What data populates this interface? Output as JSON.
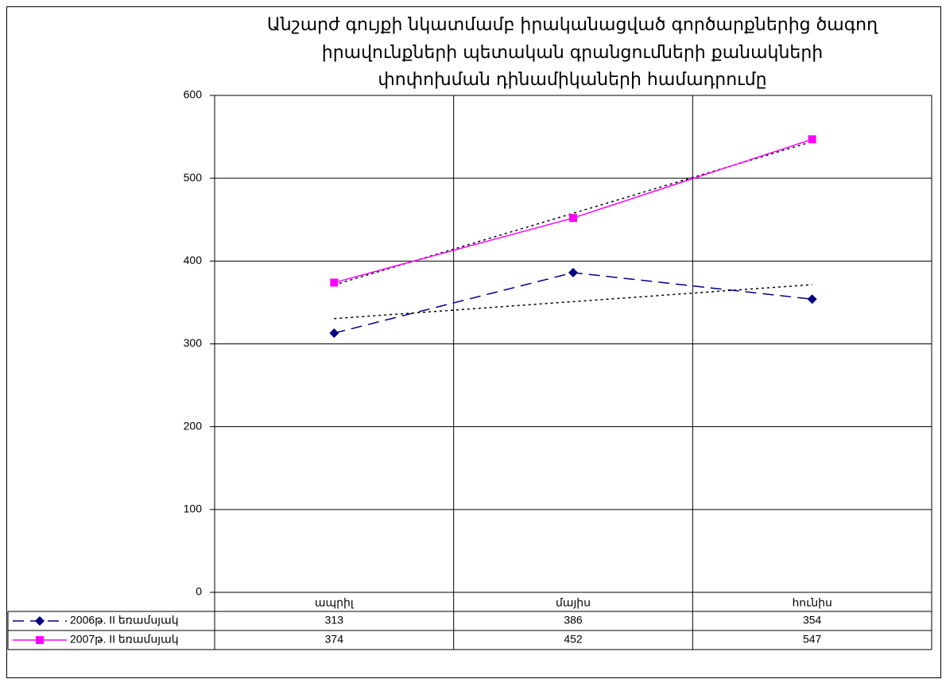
{
  "chart_data": {
    "type": "line",
    "title": [
      "Անշարժ գույքի նկատմամբ իրականացված գործարքներից ծագող",
      "իրավունքների պետական գրանցումների քանակների",
      "փոփոխման դինամիկաների համադրումը"
    ],
    "categories": [
      "ապրիլ",
      "մայիս",
      "հունիս"
    ],
    "series": [
      {
        "name": "2006թ. II եռամսյակ",
        "color": "#000080",
        "marker": "diamond",
        "dash": "dashed",
        "values": [
          313,
          386,
          354
        ]
      },
      {
        "name": "2007թ. II եռամսյակ",
        "color": "#ff00ff",
        "marker": "square",
        "dash": "solid",
        "values": [
          374,
          452,
          547
        ]
      }
    ],
    "ylim": [
      0,
      600
    ],
    "yticks": [
      0,
      100,
      200,
      300,
      400,
      500,
      600
    ],
    "grid": true,
    "trendline": "linear",
    "data_table": true
  }
}
